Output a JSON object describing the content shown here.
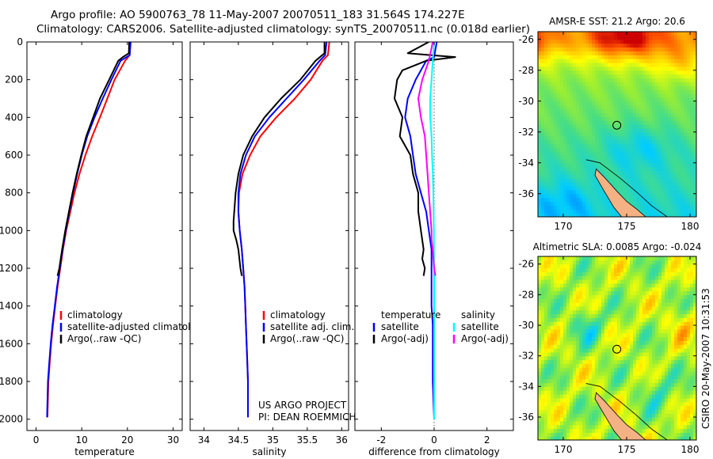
{
  "header": {
    "title_line1": "Argo profile: AO 5900763_78 11-May-2007 20070511_183 31.564S 174.227E",
    "title_line2": "Climatology: CARS2006. Satellite-adjusted climatology: synTS_20070511.nc (0.018d earlier)"
  },
  "colors": {
    "climatology": "#ff0000",
    "satellite": "#0000ff",
    "argo": "#000000",
    "satellite_salinity": "#00ffff",
    "argo_adj_salinity": "#ff00ff"
  },
  "chart_data": [
    {
      "id": "temperature-profile",
      "type": "line",
      "title": "",
      "xlabel": "temperature",
      "ylabel": "",
      "xlim": [
        -2,
        32
      ],
      "ylim": [
        2060,
        0
      ],
      "xticks": [
        0,
        10,
        20,
        30
      ],
      "yticks": [
        0,
        200,
        400,
        600,
        800,
        1000,
        1200,
        1400,
        1600,
        1800,
        2000
      ],
      "legend": [
        "climatology",
        "satellite-adjusted climatology",
        "Argo(..raw -QC)"
      ],
      "series": [
        {
          "name": "climatology",
          "color": "#ff0000",
          "x": [
            20.6,
            20.5,
            19.5,
            17.2,
            15.6,
            14.0,
            12.3,
            10.8,
            9.5,
            8.4,
            7.5,
            6.6,
            5.9,
            5.3,
            4.7,
            4.2,
            3.7,
            3.3,
            3.0,
            2.7,
            2.5
          ],
          "y": [
            0,
            70,
            100,
            200,
            300,
            400,
            500,
            600,
            700,
            800,
            900,
            1000,
            1100,
            1200,
            1300,
            1400,
            1500,
            1600,
            1700,
            1800,
            1990
          ]
        },
        {
          "name": "satellite-adjusted climatology",
          "color": "#0000ff",
          "x": [
            20.7,
            20.5,
            18.5,
            16.5,
            14.6,
            12.8,
            11.2,
            10.0,
            9.0,
            8.1,
            7.3,
            6.5,
            5.8,
            5.2,
            4.6,
            4.1,
            3.6,
            3.2,
            2.9,
            2.6,
            2.4
          ],
          "y": [
            0,
            70,
            100,
            200,
            300,
            400,
            500,
            600,
            700,
            800,
            900,
            1000,
            1100,
            1200,
            1300,
            1400,
            1500,
            1600,
            1700,
            1800,
            1990
          ]
        },
        {
          "name": "Argo(..raw -QC)",
          "color": "#000000",
          "x": [
            20.4,
            20.3,
            19.0,
            18.0,
            16.0,
            14.0,
            12.5,
            11.0,
            9.9,
            8.9,
            8.0,
            7.2,
            6.4,
            5.7,
            5.1,
            4.7
          ],
          "y": [
            0,
            60,
            80,
            100,
            200,
            300,
            400,
            500,
            600,
            700,
            800,
            900,
            1000,
            1100,
            1200,
            1240
          ]
        }
      ]
    },
    {
      "id": "salinity-profile",
      "type": "line",
      "title": "",
      "xlabel": "salinity",
      "ylabel": "",
      "xlim": [
        33.8,
        36.1
      ],
      "ylim": [
        2060,
        0
      ],
      "xticks": [
        34,
        34.5,
        35,
        35.5,
        36
      ],
      "legend": [
        "climatology",
        "satellite adj. clim.",
        "Argo(..raw -QC)"
      ],
      "series": [
        {
          "name": "climatology",
          "color": "#ff0000",
          "x": [
            35.82,
            35.8,
            35.72,
            35.55,
            35.32,
            35.05,
            34.82,
            34.67,
            34.56,
            34.51,
            34.5,
            34.52,
            34.55,
            34.57,
            34.59,
            34.6,
            34.61,
            34.62,
            34.63,
            34.64,
            34.64
          ],
          "y": [
            0,
            70,
            100,
            200,
            300,
            400,
            500,
            600,
            700,
            800,
            900,
            1000,
            1100,
            1200,
            1300,
            1400,
            1500,
            1600,
            1700,
            1800,
            1990
          ]
        },
        {
          "name": "satellite adj. clim.",
          "color": "#0000ff",
          "x": [
            35.78,
            35.76,
            35.68,
            35.45,
            35.2,
            34.95,
            34.74,
            34.61,
            34.53,
            34.5,
            34.5,
            34.52,
            34.55,
            34.57,
            34.59,
            34.6,
            34.61,
            34.62,
            34.63,
            34.64,
            34.64
          ],
          "y": [
            0,
            70,
            100,
            200,
            300,
            400,
            500,
            600,
            700,
            800,
            900,
            1000,
            1100,
            1200,
            1300,
            1400,
            1500,
            1600,
            1700,
            1800,
            1990
          ]
        },
        {
          "name": "Argo(..raw -QC)",
          "color": "#000000",
          "x": [
            35.75,
            35.75,
            35.62,
            35.4,
            35.12,
            34.88,
            34.7,
            34.57,
            34.5,
            34.46,
            34.44,
            34.43,
            34.43,
            34.47,
            34.5,
            34.53,
            34.55
          ],
          "y": [
            0,
            60,
            100,
            200,
            300,
            400,
            500,
            600,
            700,
            800,
            900,
            950,
            1000,
            1050,
            1100,
            1200,
            1240
          ]
        }
      ]
    },
    {
      "id": "difference-profile",
      "type": "line",
      "title": "",
      "xlabel": "difference from climatology",
      "ylabel": "",
      "xlim": [
        -3,
        3
      ],
      "ylim": [
        2060,
        0
      ],
      "xticks": [
        -2,
        0,
        2
      ],
      "legend": [
        "temperature",
        "satellite",
        "Argo(-adj)",
        "salinity",
        "satellite",
        "Argo(-adj)"
      ],
      "series": [
        {
          "name": "temperature satellite",
          "color": "#0000ff",
          "x": [
            0.1,
            0.0,
            -0.3,
            -0.7,
            -1.0,
            -1.1,
            -0.9,
            -0.8,
            -0.7,
            -0.5,
            -0.3,
            -0.2,
            -0.1,
            -0.1,
            -0.1,
            -0.1,
            -0.05,
            -0.05,
            -0.05,
            0.0
          ],
          "y": [
            0,
            80,
            100,
            200,
            300,
            400,
            500,
            600,
            700,
            800,
            900,
            1000,
            1100,
            1200,
            1300,
            1400,
            1500,
            1600,
            1800,
            2000
          ]
        },
        {
          "name": "temperature Argo(-adj)",
          "color": "#000000",
          "x": [
            -0.2,
            -1.0,
            -0.1,
            0.8,
            -0.3,
            -1.2,
            -1.4,
            -1.5,
            -1.2,
            -1.3,
            -0.9,
            -0.8,
            -0.6,
            -0.6,
            -0.5,
            -0.4,
            -0.45,
            -0.35,
            -0.4
          ],
          "y": [
            0,
            60,
            70,
            80,
            100,
            150,
            200,
            300,
            400,
            500,
            600,
            700,
            800,
            900,
            1000,
            1100,
            1150,
            1200,
            1240
          ]
        },
        {
          "name": "salinity satellite",
          "color": "#00ffff",
          "x": [
            0.0,
            -0.05,
            -0.1,
            -0.15,
            -0.15,
            -0.1,
            -0.08,
            -0.05,
            -0.03,
            -0.02,
            -0.01,
            -0.01,
            0.0,
            0.0,
            0.0,
            0.0
          ],
          "y": [
            0,
            100,
            200,
            300,
            400,
            500,
            600,
            700,
            800,
            900,
            1000,
            1100,
            1200,
            1400,
            1700,
            2000
          ]
        },
        {
          "name": "salinity Argo(-adj)",
          "color": "#ff00ff",
          "x": [
            -0.05,
            -0.2,
            -0.45,
            -0.6,
            -0.5,
            -0.35,
            -0.3,
            -0.25,
            -0.2,
            -0.15,
            -0.1,
            -0.1,
            -0.05,
            0.0,
            0.05
          ],
          "y": [
            0,
            100,
            200,
            300,
            400,
            500,
            600,
            700,
            800,
            900,
            1000,
            1050,
            1100,
            1200,
            1240
          ]
        }
      ]
    },
    {
      "id": "sst-map",
      "type": "heatmap",
      "title": "AMSR-E SST: 21.2 Argo: 20.6",
      "xlim": [
        168,
        180.5
      ],
      "ylim": [
        -37.5,
        -25.5
      ],
      "xticks": [
        170,
        175,
        180
      ],
      "yticks": [
        -26,
        -28,
        -30,
        -32,
        -34,
        -36
      ],
      "marker": [
        174.227,
        -31.564
      ],
      "amsr_e_sst": 21.2,
      "argo_value": 20.6
    },
    {
      "id": "sla-map",
      "type": "heatmap",
      "title": "Altimetric SLA: 0.0085 Argo: -0.024",
      "xlim": [
        168,
        180.5
      ],
      "ylim": [
        -37.5,
        -25.5
      ],
      "xticks": [
        170,
        175,
        180
      ],
      "yticks": [
        -26,
        -28,
        -30,
        -32,
        -34,
        -36
      ],
      "marker": [
        174.227,
        -31.564
      ],
      "altimetric_sla": 0.0085,
      "argo_value": -0.024
    }
  ],
  "panel_text": {
    "credit_line1": "US ARGO PROJECT",
    "credit_line2": "PI: DEAN ROEMMICH",
    "side_stamp": "CSIRO 20-May-2007 10:31:53"
  }
}
